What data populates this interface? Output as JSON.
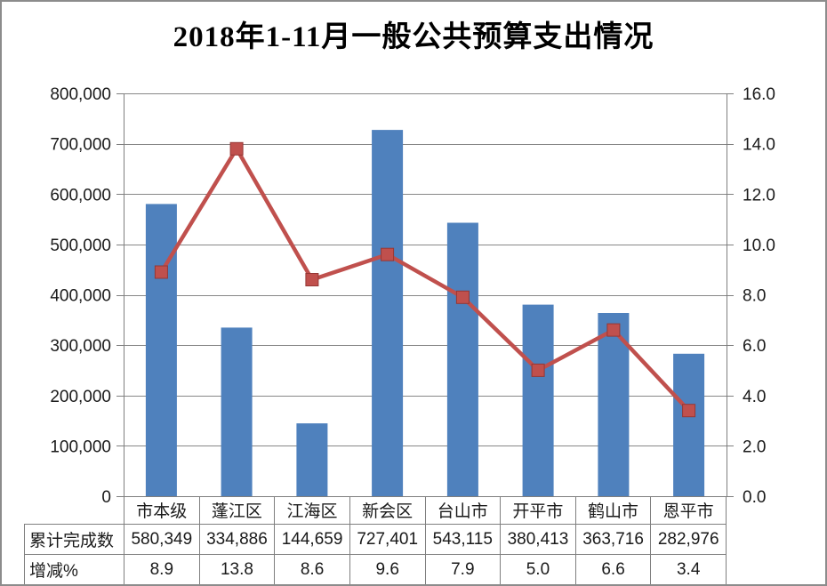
{
  "chart_data": {
    "type": "bar",
    "combo": "bar+line",
    "title": "2018年1-11月一般公共预算支出情况",
    "categories": [
      "市本级",
      "蓬江区",
      "江海区",
      "新会区",
      "台山市",
      "开平市",
      "鹤山市",
      "恩平市"
    ],
    "series": [
      {
        "name": "累计完成数",
        "type": "bar",
        "axis": "left",
        "values": [
          580349,
          334886,
          144659,
          727401,
          543115,
          380413,
          363716,
          282976
        ]
      },
      {
        "name": "增减%",
        "type": "line",
        "axis": "right",
        "values": [
          8.9,
          13.8,
          8.6,
          9.6,
          7.9,
          5.0,
          6.6,
          3.4
        ]
      }
    ],
    "left_axis": {
      "min": 0,
      "max": 800000,
      "step": 100000,
      "tick_labels": [
        "0",
        "100,000",
        "200,000",
        "300,000",
        "400,000",
        "500,000",
        "600,000",
        "700,000",
        "800,000"
      ]
    },
    "right_axis": {
      "min": 0,
      "max": 16,
      "step": 2,
      "tick_labels": [
        "0.0",
        "2.0",
        "4.0",
        "6.0",
        "8.0",
        "10.0",
        "12.0",
        "14.0",
        "16.0"
      ]
    },
    "grid": true,
    "legend": "none",
    "xlabel": "",
    "ylabel": ""
  },
  "data_table": {
    "row_labels": [
      "累计完成数",
      "增减%"
    ],
    "columns": [
      "市本级",
      "蓬江区",
      "江海区",
      "新会区",
      "台山市",
      "开平市",
      "鹤山市",
      "恩平市"
    ],
    "rows": [
      [
        "580,349",
        "334,886",
        "144,659",
        "727,401",
        "543,115",
        "380,413",
        "363,716",
        "282,976"
      ],
      [
        "8.9",
        "13.8",
        "8.6",
        "9.6",
        "7.9",
        "5.0",
        "6.6",
        "3.4"
      ]
    ]
  },
  "colors": {
    "bar": "#4f81bd",
    "line": "#c0504d",
    "marker": "#c0504d",
    "marker_border": "#953735",
    "grid": "#878787",
    "axis": "#7f7f7f",
    "table_border": "#7f7f7f",
    "text": "#1a1a1a",
    "frame_border": "#8c8c8c",
    "background": "#ffffff"
  }
}
